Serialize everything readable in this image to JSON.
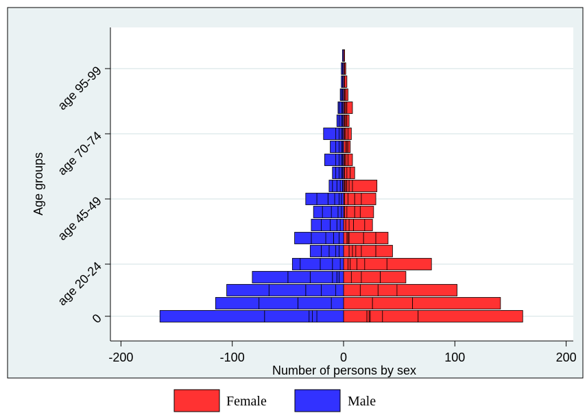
{
  "chart_data": {
    "type": "bar",
    "orientation": "horizontal-stacked-pyramid",
    "title": "",
    "xlabel": "Number of persons by sex",
    "ylabel": "Age groups",
    "xlim": [
      -200,
      200
    ],
    "xticks": [
      -200,
      -100,
      0,
      100,
      200
    ],
    "ylim": [
      -1,
      20
    ],
    "yticks": [
      {
        "value": 0,
        "label": "0"
      },
      {
        "value": 4,
        "label": "age 20-24"
      },
      {
        "value": 9,
        "label": "age 45-49"
      },
      {
        "value": 14,
        "label": "age 70-74"
      },
      {
        "value": 19,
        "label": "age 95-99"
      }
    ],
    "grid": "horizontal",
    "legend_position": "bottom",
    "series": [
      {
        "name": "Female",
        "color": "#ff3232",
        "segments": [
          [
            21,
            2,
            1,
            11,
            32,
            94
          ],
          [
            26,
            36,
            79
          ],
          [
            15,
            16,
            17,
            54
          ],
          [
            7,
            9,
            17,
            23
          ],
          [
            4,
            2,
            6,
            7,
            20,
            40
          ],
          [
            5,
            3,
            3,
            5,
            13,
            15
          ],
          [
            3,
            1,
            1,
            13,
            11,
            11
          ],
          [
            2,
            3,
            4,
            10,
            7
          ],
          [
            1,
            2,
            7,
            5,
            12
          ],
          [
            1,
            3,
            6,
            6,
            13
          ],
          [
            1,
            1,
            1,
            2,
            3,
            22
          ],
          [
            1,
            2,
            3,
            4
          ],
          [
            1,
            1,
            2,
            4
          ],
          [
            2,
            1,
            1,
            2
          ],
          [
            1,
            1,
            2,
            3
          ],
          [
            1,
            1,
            1,
            2
          ],
          [
            1,
            1,
            1,
            5
          ],
          [
            1,
            1,
            2
          ],
          [
            1,
            2
          ],
          [
            1,
            1
          ],
          [
            1
          ]
        ]
      },
      {
        "name": "Male",
        "color": "#3232ff",
        "segments": [
          [
            24,
            4,
            3,
            40,
            94
          ],
          [
            11,
            30,
            35,
            39
          ],
          [
            7,
            13,
            14,
            33,
            38
          ],
          [
            4,
            2,
            4,
            20,
            20,
            32
          ],
          [
            3,
            7,
            11,
            18,
            7
          ],
          [
            4,
            3,
            6,
            7,
            10
          ],
          [
            4,
            5,
            7,
            13,
            15
          ],
          [
            3,
            3,
            6,
            8,
            9
          ],
          [
            2,
            3,
            6,
            8,
            8
          ],
          [
            2,
            2,
            4,
            6,
            10,
            10
          ],
          [
            1,
            2,
            3,
            4,
            3
          ],
          [
            1,
            1,
            2,
            3,
            3
          ],
          [
            1,
            1,
            2,
            3,
            10
          ],
          [
            1,
            1,
            2,
            3,
            5
          ],
          [
            1,
            1,
            2,
            3,
            11
          ],
          [
            1,
            1,
            2,
            2
          ],
          [
            1,
            1,
            2,
            1
          ],
          [
            1,
            1,
            1
          ],
          [
            1,
            1
          ],
          [
            1,
            1
          ],
          [
            1
          ]
        ]
      }
    ]
  }
}
